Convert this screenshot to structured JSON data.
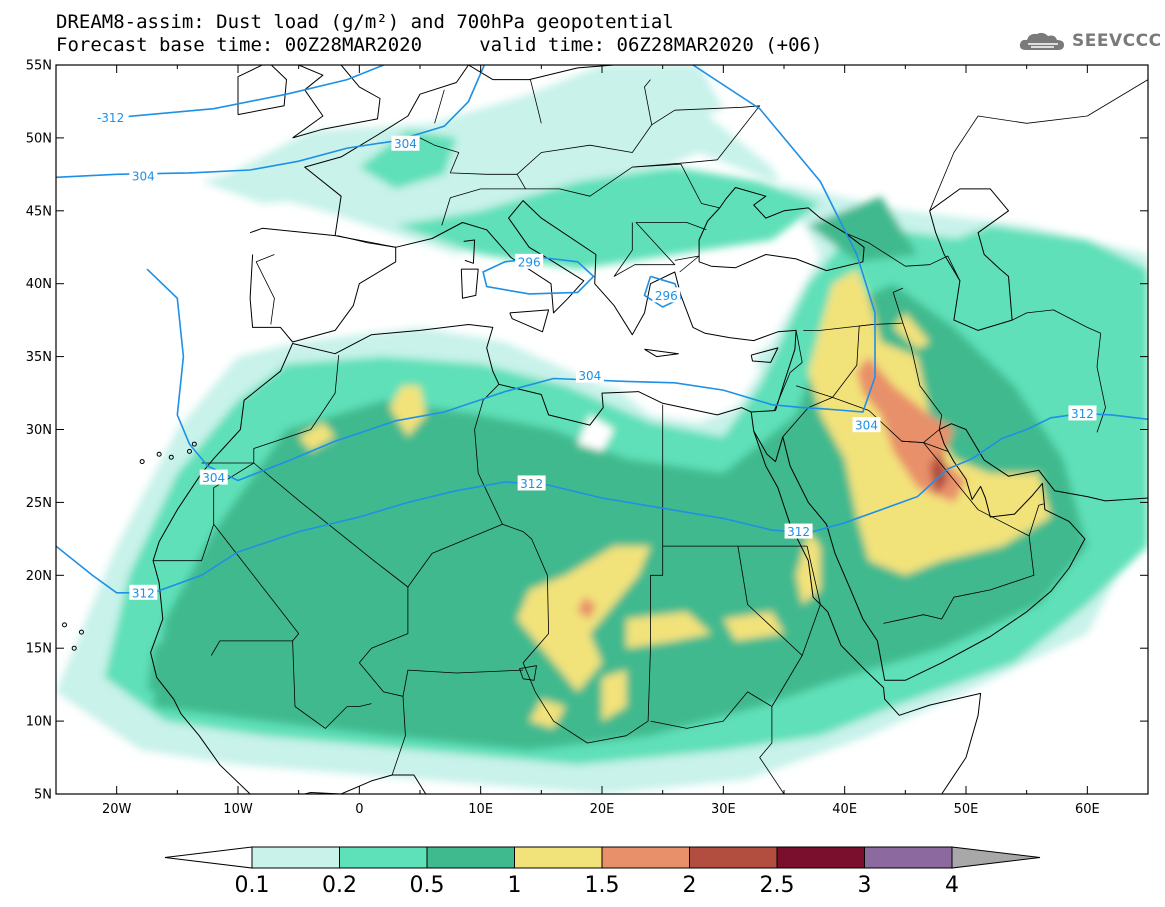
{
  "title": {
    "line1": "DREAM8-assim: Dust load (g/m²) and 700hPa geopotential",
    "line2": "Forecast base time: 00Z28MAR2020     valid time: 06Z28MAR2020 (+06)"
  },
  "brand": {
    "name": "SEEVCCC",
    "icon": "cloud-logo-icon"
  },
  "colors": {
    "levels": [
      "#ffffff",
      "#c8f2ea",
      "#5ee0b8",
      "#3fb98e",
      "#f2e27a",
      "#e8906a",
      "#b24e3f",
      "#7a0f2d",
      "#8c6aa0",
      "#a8a8a8"
    ],
    "contour": "#1e90e6",
    "coast": "#000000"
  },
  "map": {
    "lon_range": [
      -25,
      65
    ],
    "lat_range": [
      5,
      55
    ],
    "lon_ticks": [
      {
        "value": -20,
        "label": "20W"
      },
      {
        "value": -10,
        "label": "10W"
      },
      {
        "value": 0,
        "label": "0"
      },
      {
        "value": 10,
        "label": "10E"
      },
      {
        "value": 20,
        "label": "20E"
      },
      {
        "value": 30,
        "label": "30E"
      },
      {
        "value": 40,
        "label": "40E"
      },
      {
        "value": 50,
        "label": "50E"
      },
      {
        "value": 60,
        "label": "60E"
      }
    ],
    "lat_ticks": [
      {
        "value": 55,
        "label": "55N"
      },
      {
        "value": 50,
        "label": "50N"
      },
      {
        "value": 45,
        "label": "45N"
      },
      {
        "value": 40,
        "label": "40N"
      },
      {
        "value": 35,
        "label": "35N"
      },
      {
        "value": 30,
        "label": "30N"
      },
      {
        "value": 25,
        "label": "25N"
      },
      {
        "value": 20,
        "label": "20N"
      },
      {
        "value": 15,
        "label": "15N"
      },
      {
        "value": 10,
        "label": "10N"
      },
      {
        "value": 5,
        "label": "5N"
      }
    ],
    "contour_labels": [
      {
        "text": "-312",
        "lon": -20.5,
        "lat": 51.4
      },
      {
        "text": "304",
        "lon": 3.8,
        "lat": 49.6
      },
      {
        "text": "304",
        "lon": -17.8,
        "lat": 47.4
      },
      {
        "text": "296",
        "lon": 14.0,
        "lat": 41.5
      },
      {
        "text": "296",
        "lon": 25.3,
        "lat": 39.2
      },
      {
        "text": "304",
        "lon": 19.0,
        "lat": 33.7
      },
      {
        "text": "304",
        "lon": 41.8,
        "lat": 30.3
      },
      {
        "text": "312",
        "lon": 59.6,
        "lat": 31.1
      },
      {
        "text": "304",
        "lon": -12.0,
        "lat": 26.7
      },
      {
        "text": "312",
        "lon": 14.2,
        "lat": 26.3
      },
      {
        "text": "312",
        "lon": 36.2,
        "lat": 23.0
      },
      {
        "text": "312",
        "lon": -17.8,
        "lat": 18.8
      }
    ]
  },
  "colorbar": {
    "labels": [
      "0.1",
      "0.2",
      "0.5",
      "1",
      "1.5",
      "2",
      "2.5",
      "3",
      "4"
    ]
  }
}
